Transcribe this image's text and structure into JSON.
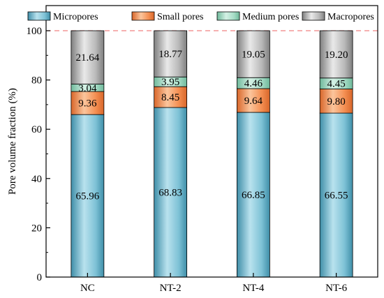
{
  "chart_data": {
    "type": "bar",
    "stacked": true,
    "categories": [
      "NC",
      "NT-2",
      "NT-4",
      "NT-6"
    ],
    "series": [
      {
        "name": "Micropores",
        "values": [
          65.96,
          68.83,
          66.85,
          66.55
        ],
        "labels": [
          "65.96",
          "68.83",
          "66.85",
          "66.55"
        ]
      },
      {
        "name": "Small pores",
        "values": [
          9.36,
          8.45,
          9.64,
          9.8
        ],
        "labels": [
          "9.36",
          "8.45",
          "9.64",
          "9.80"
        ]
      },
      {
        "name": "Medium pores",
        "values": [
          3.04,
          3.95,
          4.46,
          4.45
        ],
        "labels": [
          "3.04",
          "3.95",
          "4.46",
          "4.45"
        ]
      },
      {
        "name": "Macropores",
        "values": [
          21.64,
          18.77,
          19.05,
          19.2
        ],
        "labels": [
          "21.64",
          "18.77",
          "19.05",
          "19.20"
        ]
      }
    ],
    "xlabel": "",
    "ylabel": "Pore volume fraction (%)",
    "ylim": [
      0,
      100
    ],
    "yticks": [
      0,
      20,
      40,
      60,
      80,
      100
    ],
    "reference_line": 100,
    "legend_position": "top",
    "colors": {
      "Micropores": {
        "light": "#b9e2ee",
        "mid": "#7ec2d6",
        "dark": "#3f8ea8"
      },
      "Small pores": {
        "light": "#fbc59c",
        "mid": "#f48f52",
        "dark": "#d8662a"
      },
      "Medium pores": {
        "light": "#d4f1e5",
        "mid": "#a6dcc6",
        "dark": "#6fb99b"
      },
      "Macropores": {
        "light": "#e9e9e9",
        "mid": "#b9b9b9",
        "dark": "#7f7f7f"
      },
      "reference_line": "#f08080"
    }
  }
}
